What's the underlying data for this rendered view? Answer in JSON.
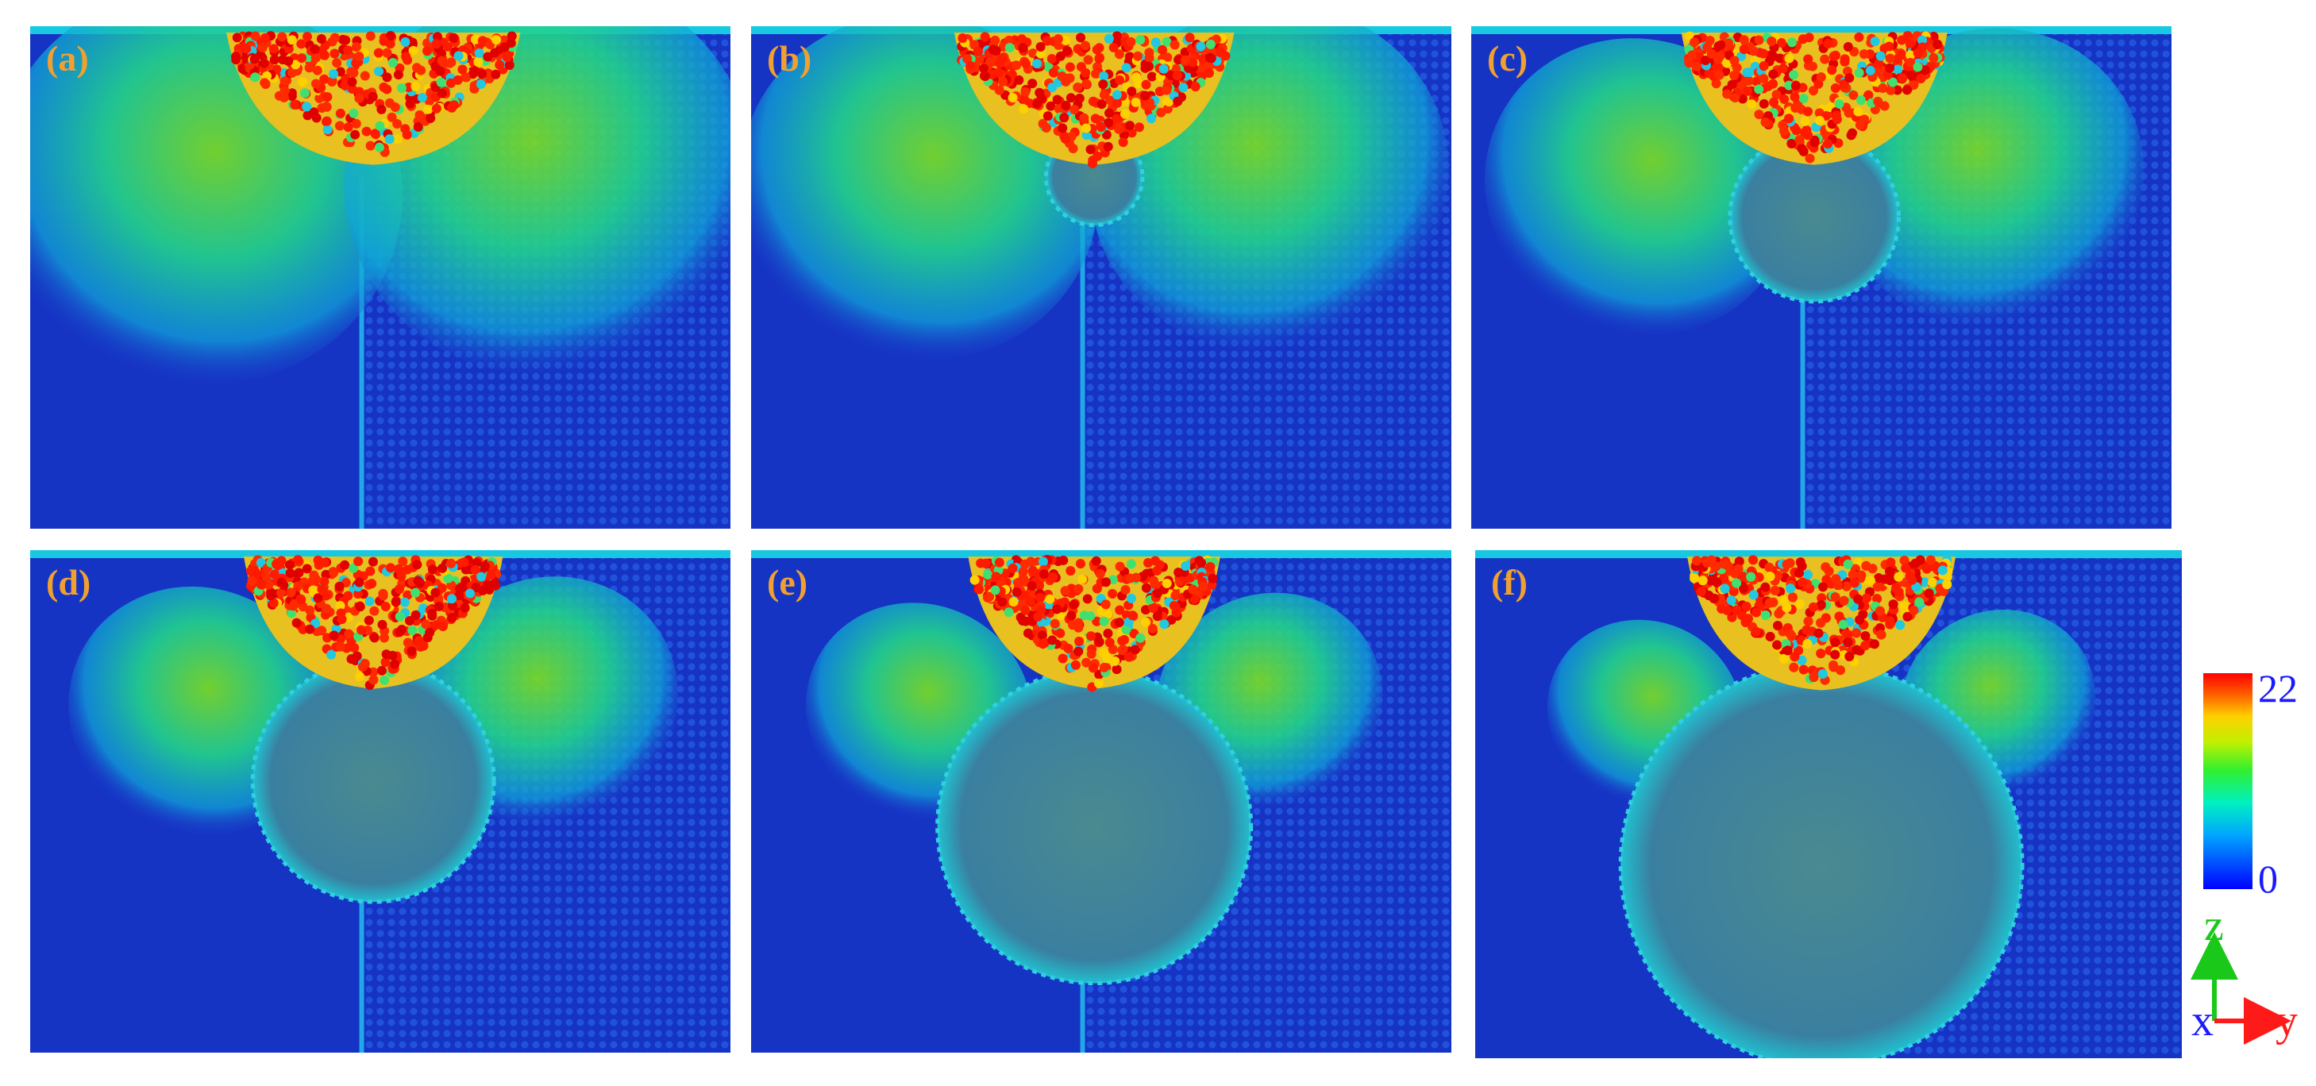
{
  "panels": [
    {
      "label": "(a)"
    },
    {
      "label": "(b)"
    },
    {
      "label": "(c)"
    },
    {
      "label": "(d)"
    },
    {
      "label": "(e)"
    },
    {
      "label": "(f)"
    }
  ],
  "colorbar": {
    "max_label": "22",
    "min_label": "0",
    "colors": [
      "#0000ff",
      "#00a6ff",
      "#00f0c0",
      "#30f030",
      "#c0f000",
      "#ffd000",
      "#ff6000",
      "#ff0000"
    ]
  },
  "axes": {
    "z_label": "z",
    "y_label": "y",
    "x_label": "x",
    "z_color": "#19c819",
    "y_color": "#ff1a1a",
    "x_color": "#1a1aff"
  }
}
